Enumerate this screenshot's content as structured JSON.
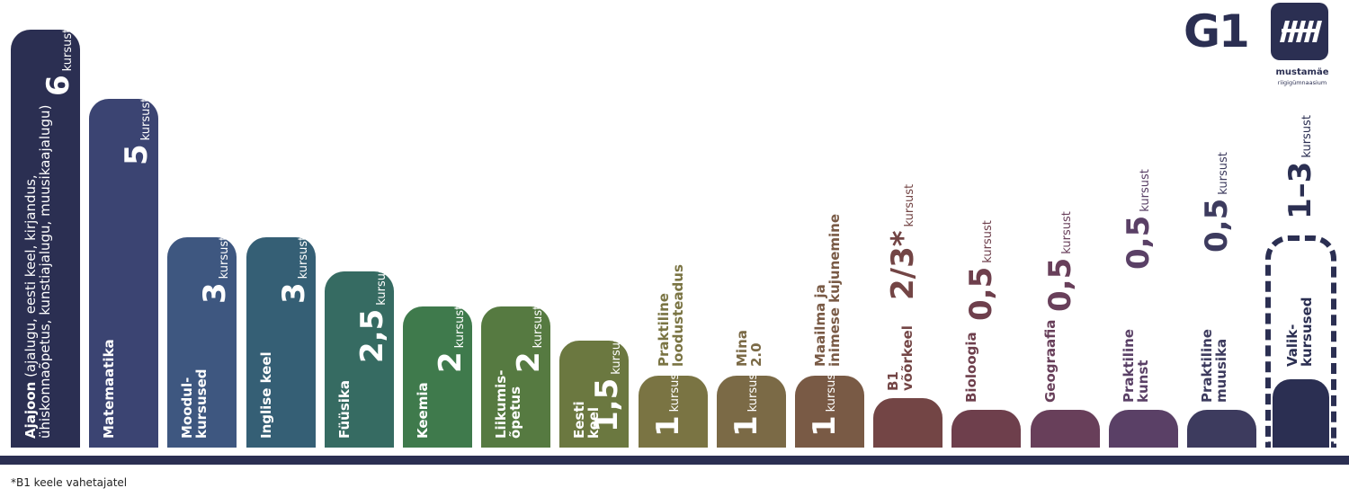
{
  "chart_data": {
    "type": "bar",
    "title": "",
    "unit_default": "kursust",
    "ylim": [
      0,
      6.2
    ],
    "categories": [
      {
        "name": "Ajajoon",
        "sub": "(ajalugu, eesti keel, kirjandus,",
        "sub2": "ühiskonnaõpetus, kunstiajalugu, muusikaajalugu)",
        "label": "6",
        "value": 6,
        "unit": "kursust",
        "color": "#2b2f52"
      },
      {
        "name": "Matemaatika",
        "label": "5",
        "value": 5,
        "unit": "kursust",
        "color": "#3b4472"
      },
      {
        "name": "Moodul-",
        "name2": "kursused",
        "label": "3",
        "value": 3,
        "unit": "kursust",
        "color": "#3e5780"
      },
      {
        "name": "Inglise keel",
        "label": "3",
        "value": 3,
        "unit": "kursust",
        "color": "#355f75"
      },
      {
        "name": "Füüsika",
        "label": "2,5",
        "value": 2.5,
        "unit": "kursust",
        "color": "#366b62"
      },
      {
        "name": "Keemia",
        "label": "2",
        "value": 2,
        "unit": "kursust",
        "color": "#3f7a4c"
      },
      {
        "name": "Liikumis-",
        "name2": "õpetus",
        "label": "2",
        "value": 2,
        "unit": "kursust",
        "color": "#567a41"
      },
      {
        "name": "Eesti",
        "name2": "keel",
        "label": "1,5",
        "value": 1.5,
        "unit": "kursust",
        "color": "#6b7840"
      },
      {
        "name": "Praktiline",
        "name2": "loodusteadus",
        "label": "1",
        "value": 1,
        "unit": "kursus",
        "color": "#7a7443"
      },
      {
        "name": "Mina",
        "name2": "2.0",
        "label": "1",
        "value": 1,
        "unit": "kursus",
        "color": "#7b6a46"
      },
      {
        "name": "Maailma ja",
        "name2": "inimese kujunemine",
        "label": "1",
        "value": 1,
        "unit": "kursus",
        "color": "#795a45"
      },
      {
        "name": "B1",
        "name2": "võõrkeel",
        "label": "2/3*",
        "value": 0.667,
        "unit": "kursust",
        "color": "#734545"
      },
      {
        "name": "Bioloogia",
        "label": "0,5",
        "value": 0.5,
        "unit": "kursust",
        "color": "#6e3f4c"
      },
      {
        "name": "Geograafia",
        "label": "0,5",
        "value": 0.5,
        "unit": "kursust",
        "color": "#683f5a"
      },
      {
        "name": "Praktiline",
        "name2": "kunst",
        "label": "0,5",
        "value": 0.5,
        "unit": "kursust",
        "color": "#5a4066"
      },
      {
        "name": "Praktiline",
        "name2": "muusika",
        "label": "0,5",
        "value": 0.5,
        "unit": "kursust",
        "color": "#3d3b5e"
      },
      {
        "name": "Valik-",
        "name2": "kursused",
        "label": "1–3",
        "value": 3,
        "value_min": 1,
        "unit": "kursust",
        "color": "#2b2f52",
        "dashed": true
      }
    ]
  },
  "footnote": "*B1 keele vahetajatel",
  "logo": {
    "mark": "G1",
    "name": "mustamäe",
    "sub": "riigigümnaasium",
    "icon": "mustamae-logo-icon"
  }
}
